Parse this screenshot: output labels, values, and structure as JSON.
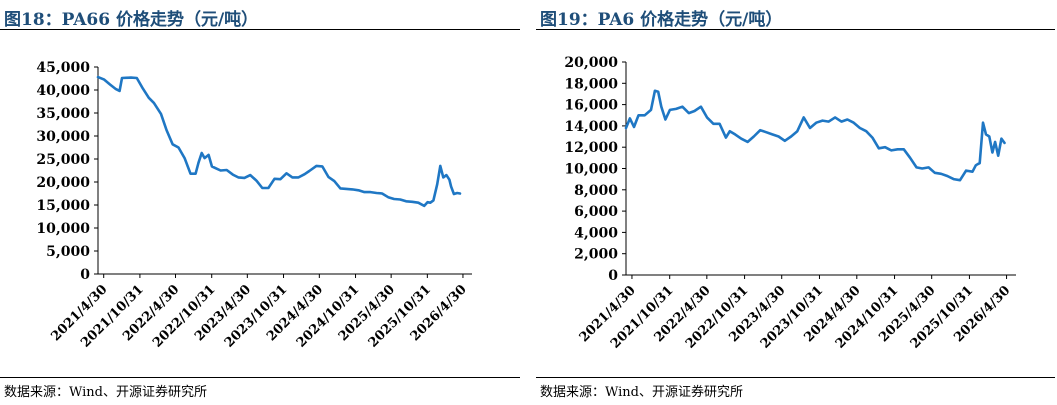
{
  "panels": [
    {
      "title": "图18：PA66 价格走势（元/吨）",
      "source": "数据来源：Wind、开源证券研究所"
    },
    {
      "title": "图19：PA6 价格走势（元/吨）",
      "source": "数据来源：Wind、开源证券研究所"
    }
  ],
  "chart_data": [
    {
      "type": "line",
      "title": "",
      "xlabel": "",
      "ylabel": "",
      "ylim": [
        0,
        45000
      ],
      "yticks": [
        0,
        5000,
        10000,
        15000,
        20000,
        25000,
        30000,
        35000,
        40000,
        45000
      ],
      "ytick_labels": [
        "0",
        "5,000",
        "10,000",
        "15,000",
        "20,000",
        "25,000",
        "30,000",
        "35,000",
        "40,000",
        "45,000"
      ],
      "xlim": [
        "2021-04-01",
        "2026-06-15"
      ],
      "xticks": [
        "2021-04-30",
        "2021-10-31",
        "2022-04-30",
        "2022-10-31",
        "2023-04-30",
        "2023-10-31",
        "2024-04-30",
        "2024-10-31",
        "2025-04-30",
        "2025-10-31",
        "2026-04-30"
      ],
      "xtick_labels": [
        "2021/4/30",
        "2021/10/31",
        "2022/4/30",
        "2022/10/31",
        "2023/4/30",
        "2023/10/31",
        "2024/4/30",
        "2024/10/31",
        "2025/4/30",
        "2025/10/31",
        "2026/4/30"
      ],
      "grid": false,
      "line_color": "#1f77c4",
      "series": [
        {
          "x": [
            "2021-04-01",
            "2021-05-01",
            "2021-06-01",
            "2021-07-01",
            "2021-07-20",
            "2021-08-01",
            "2021-09-15",
            "2021-10-15",
            "2021-11-15",
            "2021-12-15",
            "2022-01-10",
            "2022-02-15",
            "2022-03-15",
            "2022-04-15",
            "2022-05-15",
            "2022-06-15",
            "2022-07-15",
            "2022-08-10",
            "2022-08-25",
            "2022-09-10",
            "2022-09-25",
            "2022-10-15",
            "2022-11-01",
            "2022-11-20",
            "2022-12-15",
            "2023-01-15",
            "2023-02-15",
            "2023-03-15",
            "2023-04-15",
            "2023-05-15",
            "2023-06-15",
            "2023-07-15",
            "2023-08-15",
            "2023-09-15",
            "2023-10-15",
            "2023-11-15",
            "2023-12-15",
            "2024-01-15",
            "2024-02-15",
            "2024-03-10",
            "2024-04-15",
            "2024-05-15",
            "2024-06-15",
            "2024-07-15",
            "2024-08-15",
            "2024-09-15",
            "2024-10-15",
            "2024-11-15",
            "2024-12-15",
            "2025-01-15",
            "2025-02-15",
            "2025-03-15",
            "2025-04-15",
            "2025-05-15",
            "2025-06-15",
            "2025-07-15",
            "2025-08-15",
            "2025-09-15",
            "2025-10-15",
            "2025-11-01",
            "2025-11-15",
            "2025-12-01",
            "2025-12-20",
            "2026-01-05",
            "2026-01-20",
            "2026-02-05",
            "2026-02-20",
            "2026-03-01",
            "2026-03-15",
            "2026-04-01",
            "2026-04-15",
            "2026-05-01",
            "2026-05-15",
            "2026-05-31"
          ],
          "y": [
            42800,
            42300,
            41200,
            40200,
            39800,
            42600,
            42700,
            42600,
            40300,
            38300,
            37200,
            34800,
            31300,
            28200,
            27500,
            25200,
            21800,
            21800,
            24200,
            26300,
            25200,
            25900,
            23400,
            23000,
            22500,
            22600,
            21600,
            21000,
            20900,
            21500,
            20300,
            18700,
            18700,
            20700,
            20600,
            21900,
            21000,
            21000,
            21700,
            22400,
            23500,
            23400,
            21100,
            20200,
            18600,
            18500,
            18400,
            18200,
            17800,
            17800,
            17600,
            17500,
            16700,
            16300,
            16200,
            15800,
            15700,
            15500,
            14800,
            15600,
            15500,
            16000,
            19500,
            23500,
            21000,
            21500,
            20500,
            19000,
            17400,
            17600,
            17500,
            null,
            null,
            null
          ]
        }
      ]
    },
    {
      "type": "line",
      "title": "",
      "xlabel": "",
      "ylabel": "",
      "ylim": [
        0,
        20000
      ],
      "yticks": [
        0,
        2000,
        4000,
        6000,
        8000,
        10000,
        12000,
        14000,
        16000,
        18000,
        20000
      ],
      "ytick_labels": [
        "0",
        "2,000",
        "4,000",
        "6,000",
        "8,000",
        "10,000",
        "12,000",
        "14,000",
        "16,000",
        "18,000",
        "20,000"
      ],
      "xlim": [
        "2021-04-01",
        "2026-06-15"
      ],
      "xticks": [
        "2021-04-30",
        "2021-10-31",
        "2022-04-30",
        "2022-10-31",
        "2023-04-30",
        "2023-10-31",
        "2024-04-30",
        "2024-10-31",
        "2025-04-30",
        "2025-10-31",
        "2026-04-30"
      ],
      "xtick_labels": [
        "2021/4/30",
        "2021/10/31",
        "2022/4/30",
        "2022/10/31",
        "2023/4/30",
        "2023/10/31",
        "2024/4/30",
        "2024/10/31",
        "2025/4/30",
        "2025/10/31",
        "2026/4/30"
      ],
      "grid": false,
      "line_color": "#1f77c4",
      "series": [
        {
          "x": [
            "2021-04-01",
            "2021-04-20",
            "2021-05-10",
            "2021-06-01",
            "2021-07-01",
            "2021-08-01",
            "2021-08-20",
            "2021-09-05",
            "2021-09-20",
            "2021-10-10",
            "2021-11-01",
            "2021-12-01",
            "2022-01-01",
            "2022-02-01",
            "2022-03-01",
            "2022-04-01",
            "2022-05-01",
            "2022-06-01",
            "2022-07-01",
            "2022-08-01",
            "2022-08-20",
            "2022-09-15",
            "2022-10-15",
            "2022-11-15",
            "2022-12-15",
            "2023-01-15",
            "2023-02-15",
            "2023-03-15",
            "2023-04-15",
            "2023-05-15",
            "2023-06-15",
            "2023-07-15",
            "2023-08-15",
            "2023-09-15",
            "2023-10-15",
            "2023-11-15",
            "2023-12-15",
            "2024-01-15",
            "2024-02-15",
            "2024-03-15",
            "2024-04-15",
            "2024-05-15",
            "2024-06-15",
            "2024-07-15",
            "2024-08-15",
            "2024-09-15",
            "2024-10-15",
            "2024-11-15",
            "2024-12-15",
            "2025-01-15",
            "2025-02-15",
            "2025-03-15",
            "2025-04-15",
            "2025-05-15",
            "2025-06-15",
            "2025-07-15",
            "2025-08-15",
            "2025-09-15",
            "2025-10-15",
            "2025-11-15",
            "2025-12-01",
            "2025-12-10",
            "2025-12-20",
            "2026-01-05",
            "2026-01-20",
            "2026-02-05",
            "2026-02-20",
            "2026-03-05",
            "2026-03-20",
            "2026-04-05",
            "2026-04-20",
            "2026-05-01",
            "2026-05-15",
            "2026-05-31"
          ],
          "y": [
            13800,
            14700,
            13900,
            15000,
            15000,
            15500,
            17300,
            17200,
            15800,
            14600,
            15500,
            15600,
            15800,
            15200,
            15400,
            15800,
            14800,
            14200,
            14200,
            12900,
            13500,
            13200,
            12800,
            12500,
            13000,
            13600,
            13400,
            13200,
            13000,
            12600,
            13000,
            13500,
            14800,
            13800,
            14300,
            14500,
            14400,
            14800,
            14400,
            14600,
            14300,
            13800,
            13500,
            12900,
            11900,
            12000,
            11700,
            11800,
            11800,
            11000,
            10100,
            10000,
            10100,
            9600,
            9500,
            9300,
            9000,
            8900,
            9800,
            9700,
            10300,
            10400,
            10500,
            14300,
            13200,
            13000,
            11500,
            12500,
            11200,
            12800,
            12400,
            null,
            null,
            null
          ]
        }
      ]
    }
  ]
}
